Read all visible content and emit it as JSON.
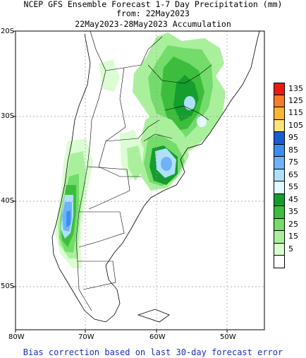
{
  "title": {
    "line1": "NCEP GFS Ensemble Forecast 1-7 Day Precipitation (mm)",
    "line2": "from: 22May2023",
    "line3": "22May2023-28May2023 Accumulation"
  },
  "footer": "Bias correction based on last 30-day forecast error",
  "axes": {
    "lat_labels": [
      "20S",
      "30S",
      "40S",
      "50S"
    ],
    "lon_labels": [
      "80W",
      "70W",
      "60W",
      "50W"
    ]
  },
  "legend": [
    {
      "label": "135",
      "color": "#e61e0f"
    },
    {
      "label": "125",
      "color": "#f87d28"
    },
    {
      "label": "115",
      "color": "#fbb535"
    },
    {
      "label": "105",
      "color": "#fbe478"
    },
    {
      "label": "95",
      "color": "#1b5cd6"
    },
    {
      "label": "85",
      "color": "#3c8ff0"
    },
    {
      "label": "75",
      "color": "#6fb3f7"
    },
    {
      "label": "65",
      "color": "#afe0fb"
    },
    {
      "label": "55",
      "color": "#e2fafe"
    },
    {
      "label": "45",
      "color": "#159d2d"
    },
    {
      "label": "35",
      "color": "#3cbe3c"
    },
    {
      "label": "25",
      "color": "#73dc6b"
    },
    {
      "label": "15",
      "color": "#aaf09c"
    },
    {
      "label": "5",
      "color": "#dcfcd3"
    },
    {
      "label": "",
      "color": "#ffffff"
    }
  ],
  "colors": {
    "gridline": "#9a9a9a",
    "border": "#000000",
    "footer_text": "#1a2fbf"
  }
}
